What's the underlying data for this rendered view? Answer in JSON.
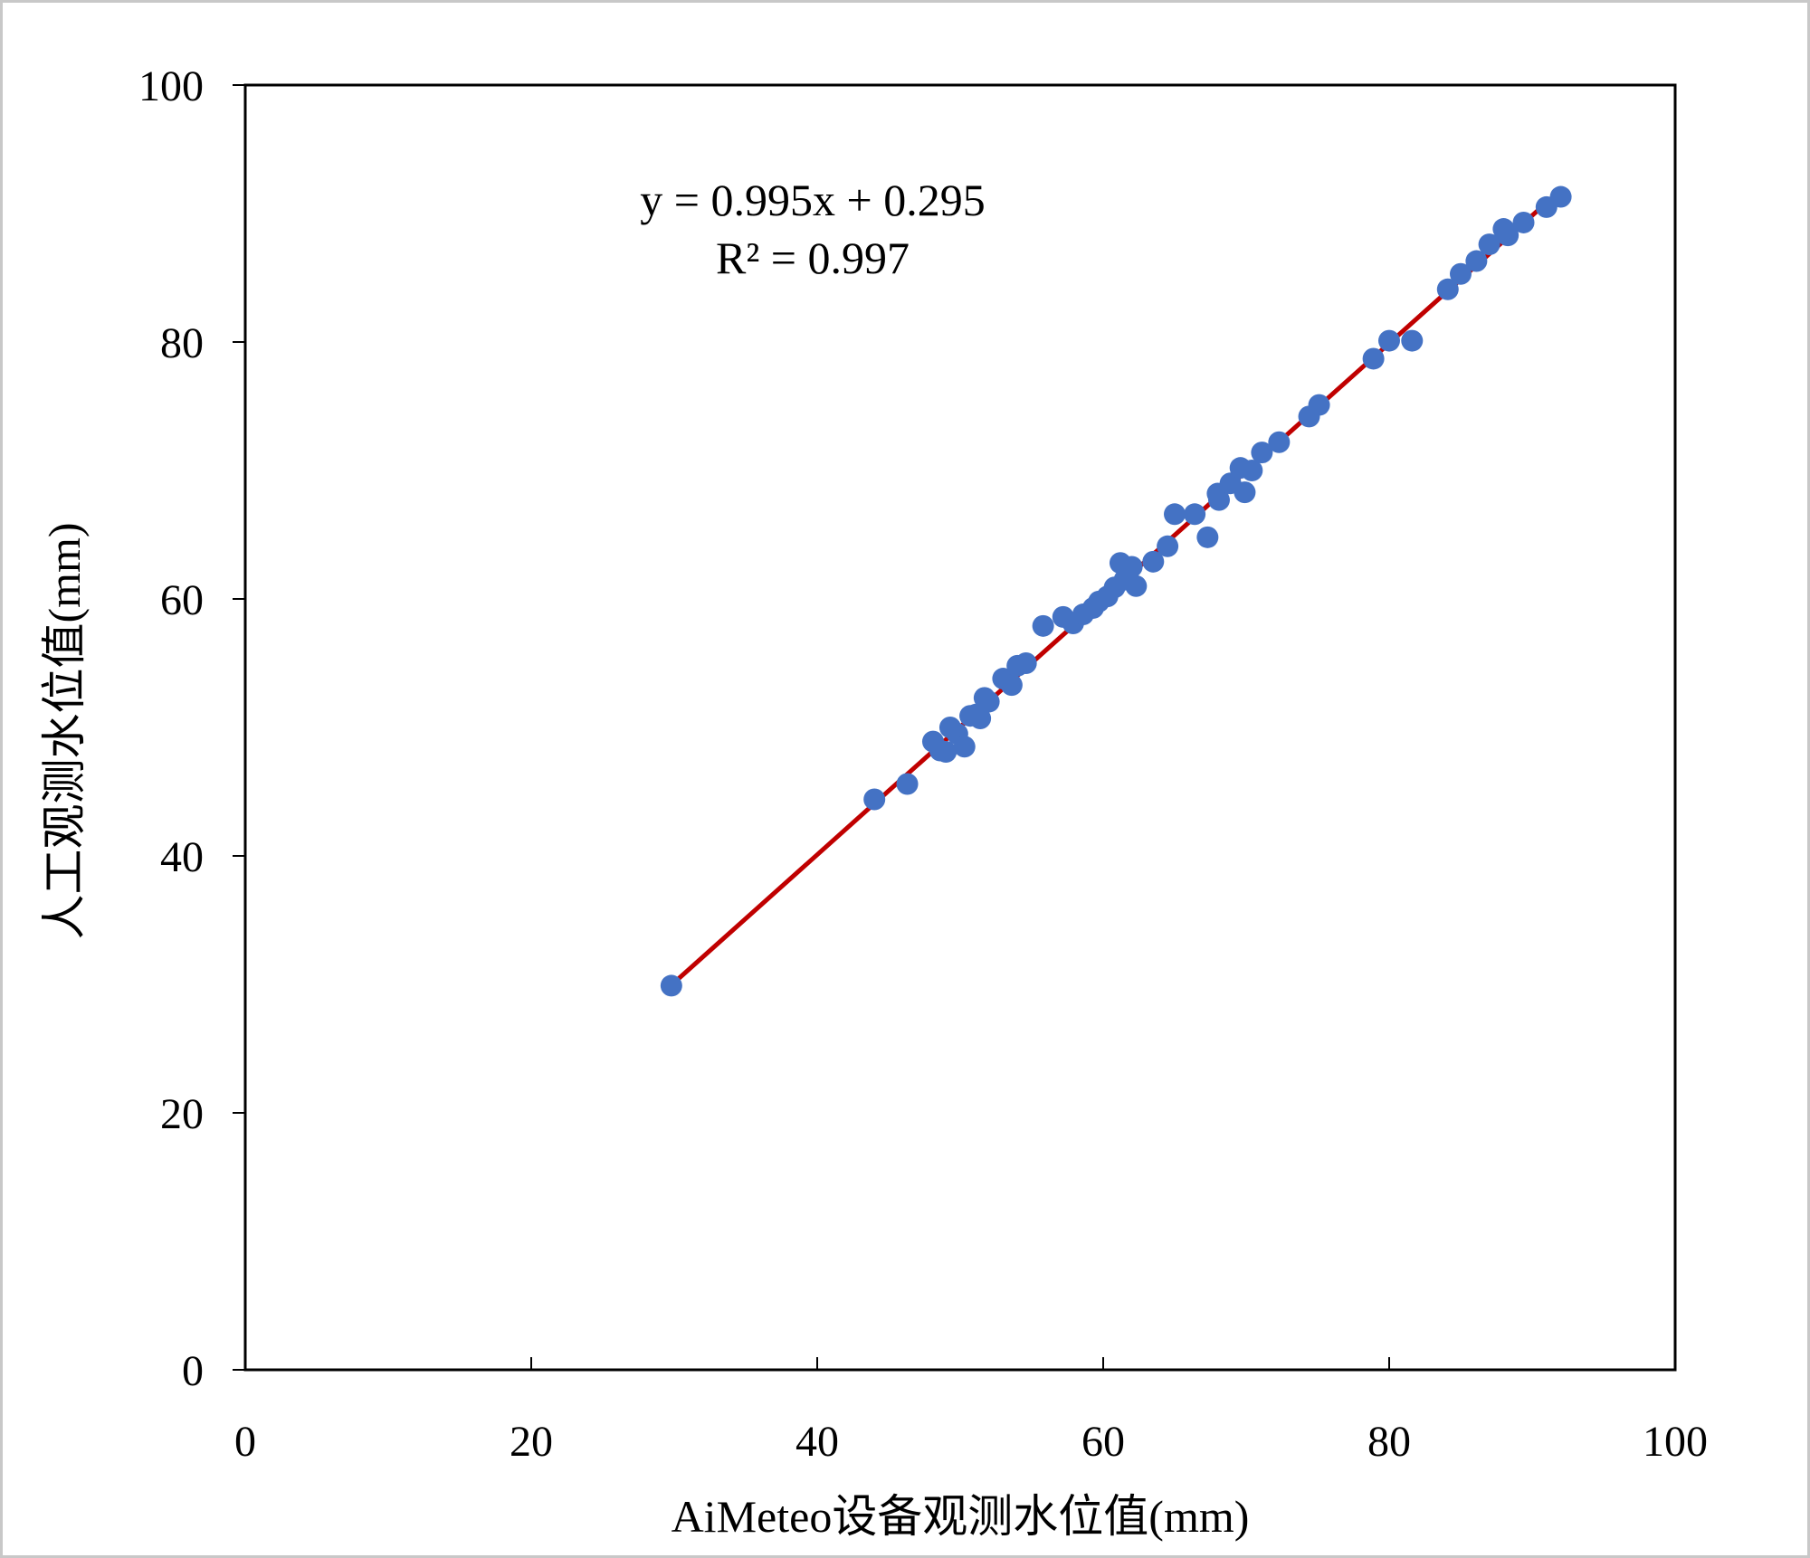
{
  "chart_data": {
    "type": "scatter",
    "xlabel": "AiMeteo设备观测水位值(mm)",
    "ylabel": "人工观测水位值(mm)",
    "xlim": [
      0,
      100
    ],
    "ylim": [
      0,
      100
    ],
    "x_ticks": [
      0,
      20,
      40,
      60,
      80,
      100
    ],
    "y_ticks": [
      0,
      20,
      40,
      60,
      80,
      100
    ],
    "grid": false,
    "legend": "none",
    "series": [
      {
        "color": "#4472C4",
        "points": [
          [
            29.8,
            29.9
          ],
          [
            44.0,
            44.4
          ],
          [
            46.3,
            45.6
          ],
          [
            48.1,
            48.9
          ],
          [
            48.6,
            48.2
          ],
          [
            49.0,
            48.1
          ],
          [
            49.3,
            50.0
          ],
          [
            49.8,
            49.5
          ],
          [
            50.3,
            48.5
          ],
          [
            50.7,
            50.9
          ],
          [
            51.1,
            51.0
          ],
          [
            51.4,
            50.7
          ],
          [
            51.7,
            52.3
          ],
          [
            52.0,
            52.0
          ],
          [
            53.0,
            53.8
          ],
          [
            53.6,
            53.3
          ],
          [
            54.0,
            54.8
          ],
          [
            54.6,
            55.0
          ],
          [
            55.8,
            57.9
          ],
          [
            57.2,
            58.6
          ],
          [
            57.9,
            58.1
          ],
          [
            58.6,
            58.8
          ],
          [
            59.3,
            59.3
          ],
          [
            59.7,
            59.8
          ],
          [
            60.3,
            60.2
          ],
          [
            60.8,
            60.9
          ],
          [
            61.2,
            62.8
          ],
          [
            61.5,
            61.5
          ],
          [
            62.0,
            62.5
          ],
          [
            62.3,
            61.0
          ],
          [
            63.5,
            62.9
          ],
          [
            64.5,
            64.1
          ],
          [
            65.0,
            66.6
          ],
          [
            66.4,
            66.6
          ],
          [
            67.3,
            64.8
          ],
          [
            68.0,
            68.2
          ],
          [
            68.1,
            67.7
          ],
          [
            68.9,
            69.0
          ],
          [
            69.6,
            70.2
          ],
          [
            69.9,
            68.3
          ],
          [
            70.4,
            70.0
          ],
          [
            71.1,
            71.4
          ],
          [
            72.3,
            72.2
          ],
          [
            74.4,
            74.2
          ],
          [
            75.1,
            75.1
          ],
          [
            78.9,
            78.7
          ],
          [
            80.0,
            80.1
          ],
          [
            81.6,
            80.1
          ],
          [
            84.1,
            84.1
          ],
          [
            85.0,
            85.3
          ],
          [
            86.1,
            86.3
          ],
          [
            87.0,
            87.6
          ],
          [
            88.3,
            88.3
          ],
          [
            88.0,
            88.8
          ],
          [
            89.4,
            89.3
          ],
          [
            91.0,
            90.5
          ],
          [
            92.0,
            91.3
          ]
        ]
      }
    ],
    "trendline": {
      "color": "#C00000",
      "slope": 0.995,
      "intercept": 0.295,
      "x_range": [
        29.8,
        92.0
      ],
      "equation": "y = 0.995x + 0.295",
      "r_squared": "R² = 0.997"
    }
  }
}
